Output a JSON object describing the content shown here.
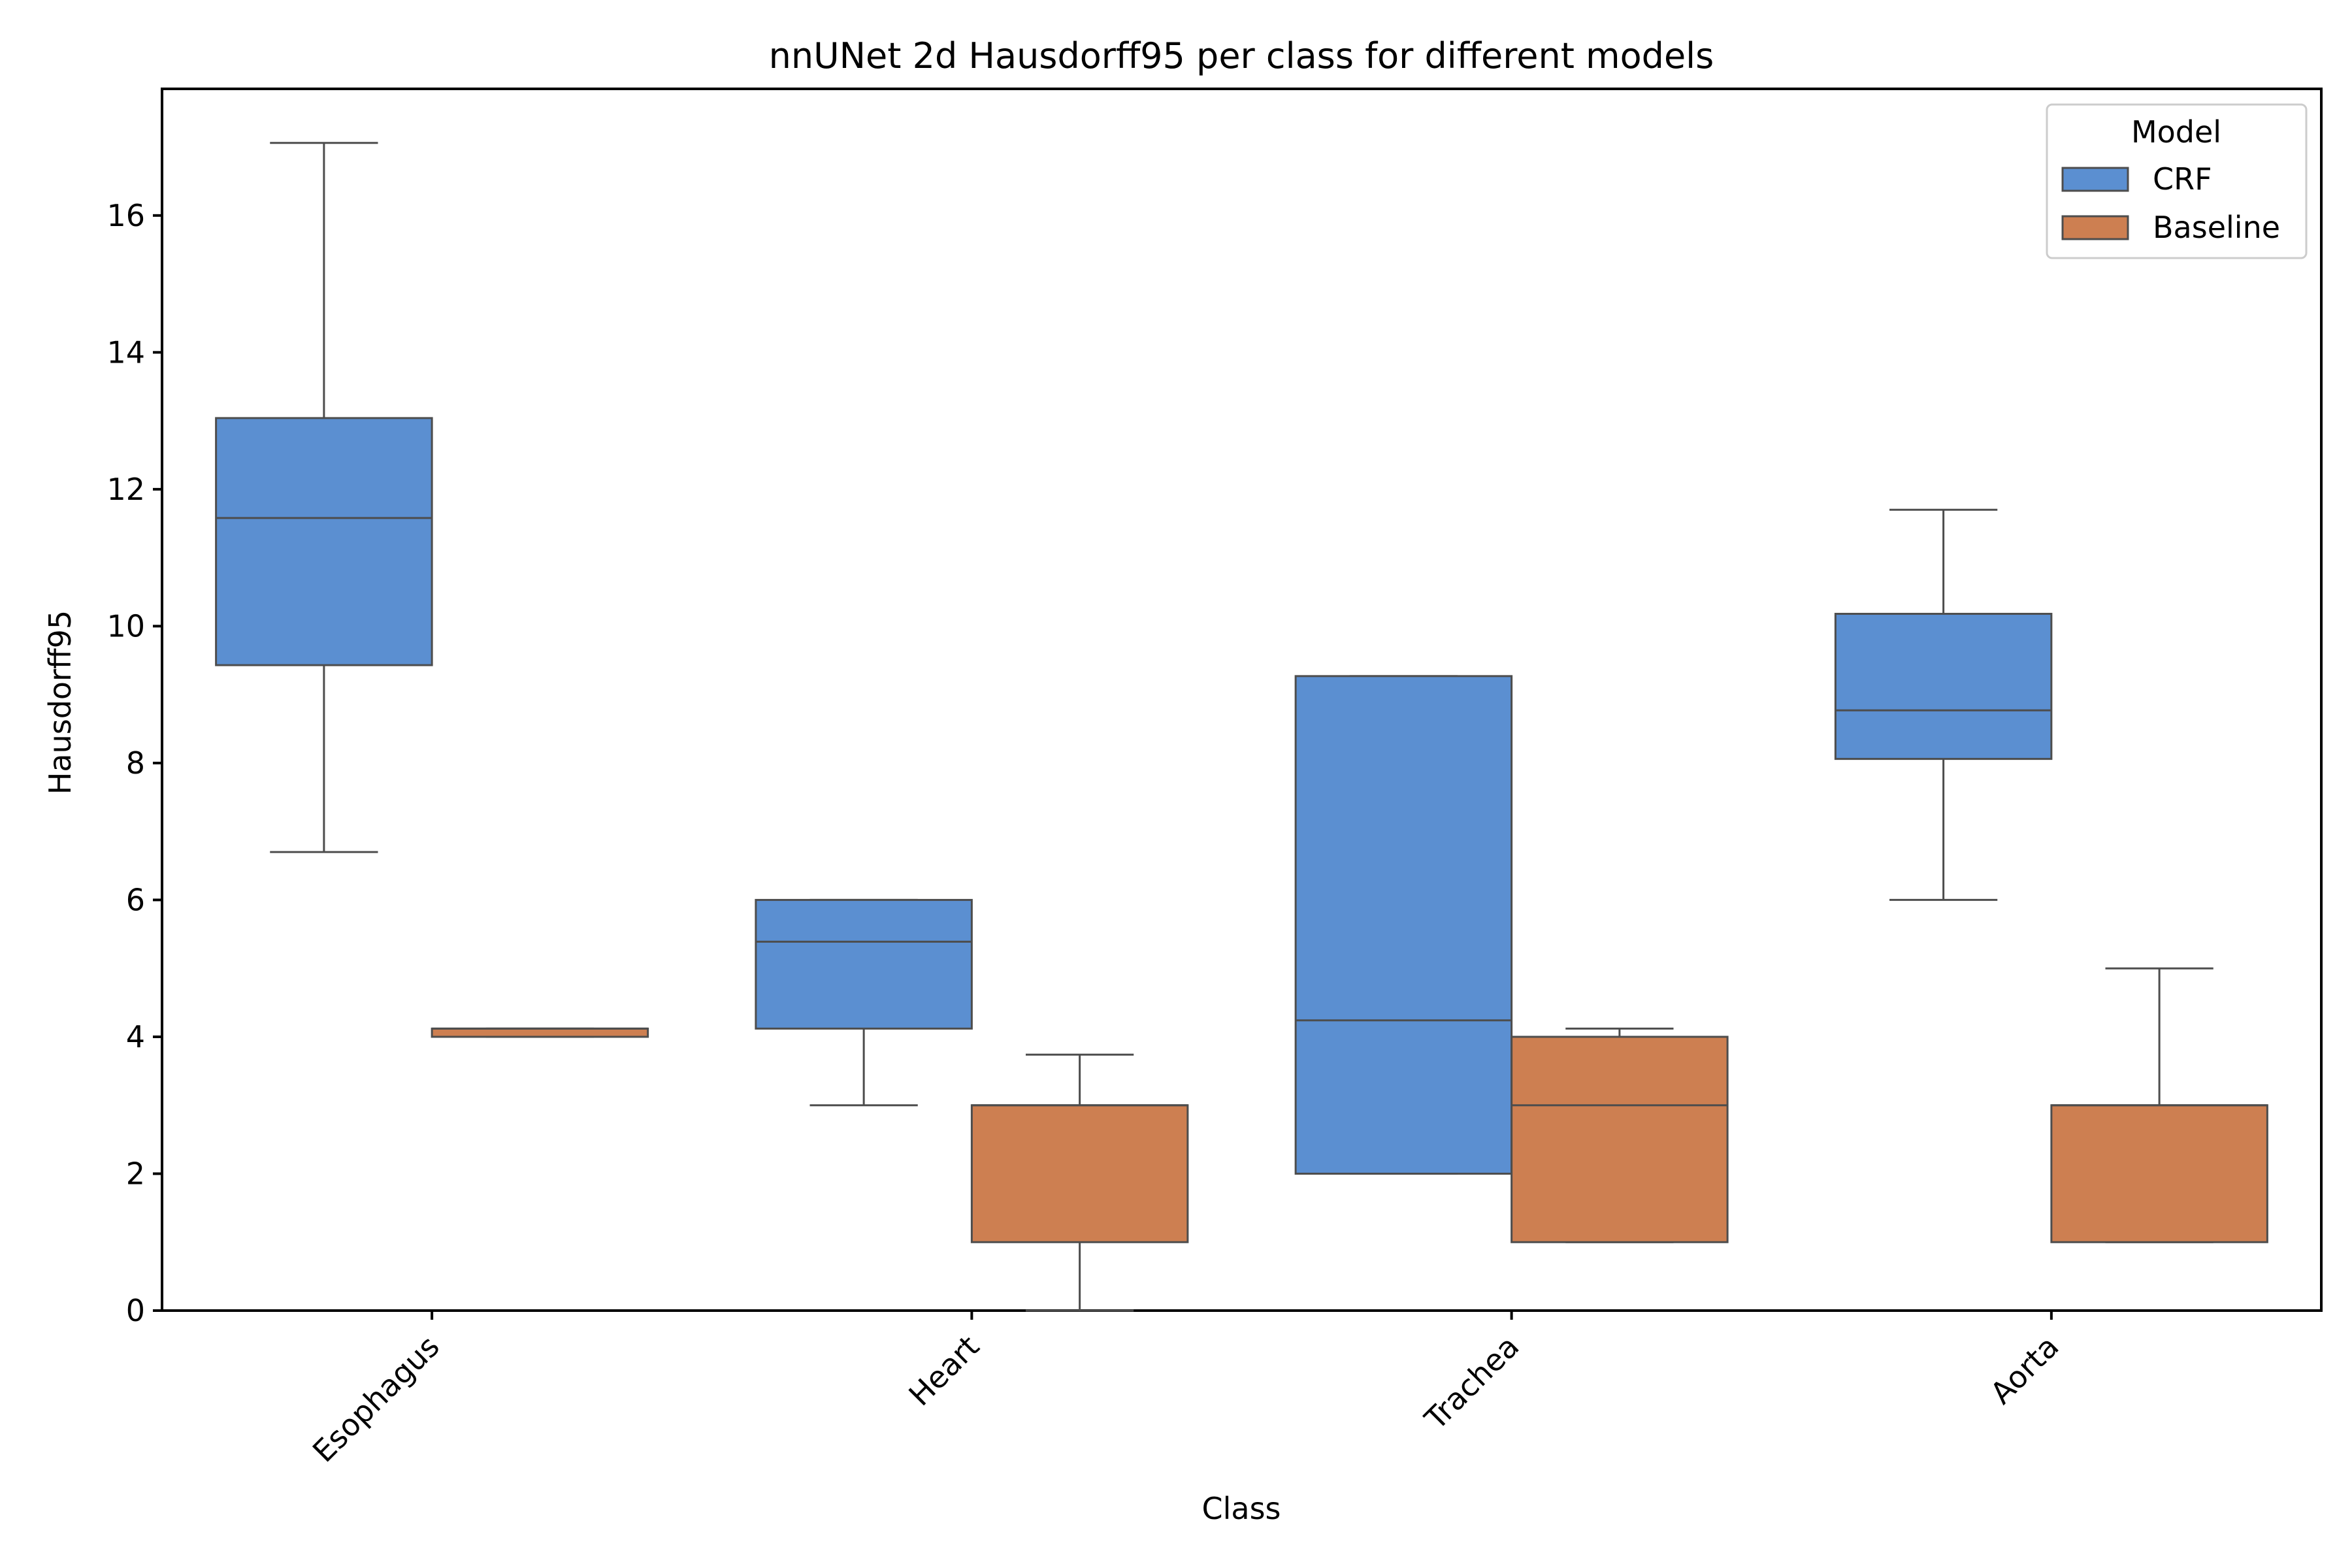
{
  "chart_data": {
    "type": "boxplot",
    "title": "nnUNet 2d Hausdorff95 per class for different models",
    "xlabel": "Class",
    "ylabel": "Hausdorff95",
    "ylim": [
      0,
      17.85
    ],
    "yticks": [
      0,
      2,
      4,
      6,
      8,
      10,
      12,
      14,
      16
    ],
    "grid": false,
    "categories": [
      "Esophagus",
      "Heart",
      "Trachea",
      "Aorta"
    ],
    "legend": {
      "title": "Model",
      "position": "top-right"
    },
    "series": [
      {
        "name": "CRF",
        "color": "#5b8fd1",
        "boxes": [
          {
            "whisker_low": 6.7,
            "q1": 9.43,
            "median": 11.58,
            "q3": 13.04,
            "whisker_high": 17.06
          },
          {
            "whisker_low": 3.0,
            "q1": 4.12,
            "median": 5.39,
            "q3": 6.0,
            "whisker_high": 6.0
          },
          {
            "whisker_low": 2.0,
            "q1": 2.0,
            "median": 4.24,
            "q3": 9.27,
            "whisker_high": 9.27
          },
          {
            "whisker_low": 6.0,
            "q1": 8.06,
            "median": 8.77,
            "q3": 10.18,
            "whisker_high": 11.7
          }
        ]
      },
      {
        "name": "Baseline",
        "color": "#cd7f51",
        "boxes": [
          {
            "whisker_low": 4.0,
            "q1": 4.0,
            "median": 4.12,
            "q3": 4.12,
            "whisker_high": 4.12
          },
          {
            "whisker_low": 0.0,
            "q1": 1.0,
            "median": 3.0,
            "q3": 3.0,
            "whisker_high": 3.74
          },
          {
            "whisker_low": 1.0,
            "q1": 1.0,
            "median": 3.0,
            "q3": 4.0,
            "whisker_high": 4.12
          },
          {
            "whisker_low": 1.0,
            "q1": 1.0,
            "median": 3.0,
            "q3": 3.0,
            "whisker_high": 5.0
          }
        ]
      }
    ]
  }
}
